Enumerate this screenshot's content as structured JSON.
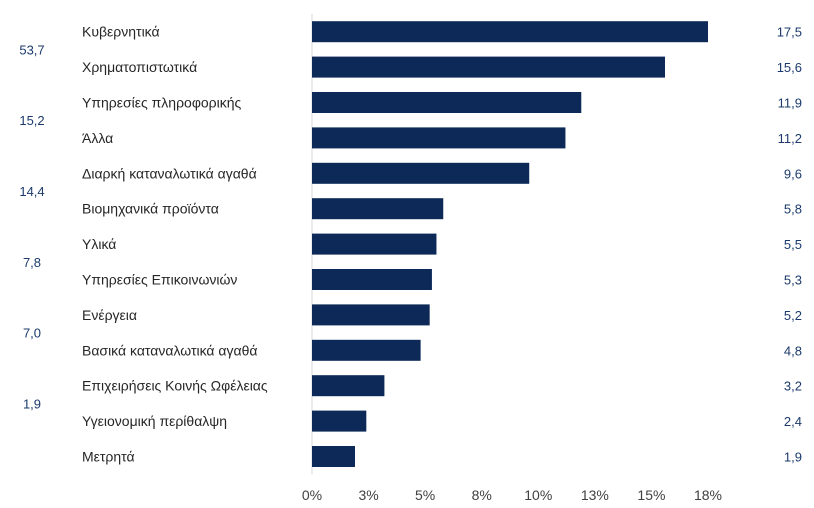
{
  "chart_data": {
    "type": "bar",
    "orientation": "horizontal",
    "categories": [
      "Κυβερνητικά",
      "Χρηματοπιστωτικά",
      "Υπηρεσίες πληροφορικής",
      "Άλλα",
      "Διαρκή καταναλωτικά αγαθά",
      "Βιομηχανικά προϊόντα",
      "Υλικά",
      "Υπηρεσίες Επικοινωνιών",
      "Ενέργεια",
      "Βασικά καταναλωτικά αγαθά",
      "Επιχειρήσεις Κοινής Ωφέλειας",
      "Υγειονομική περίθαλψη",
      "Μετρητά"
    ],
    "values": [
      17.5,
      15.6,
      11.9,
      11.2,
      9.6,
      5.8,
      5.5,
      5.3,
      5.2,
      4.8,
      3.2,
      2.4,
      1.9
    ],
    "value_labels": [
      "17,5",
      "15,6",
      "11,9",
      "11,2",
      "9,6",
      "5,8",
      "5,5",
      "5,3",
      "5,2",
      "4,8",
      "3,2",
      "2,4",
      "1,9"
    ],
    "group_labels": [
      {
        "text": "53,7",
        "row": 0.5
      },
      {
        "text": "15,2",
        "row": 2.5
      },
      {
        "text": "14,4",
        "row": 4.5
      },
      {
        "text": "7,8",
        "row": 6.5
      },
      {
        "text": "7,0",
        "row": 8.5
      },
      {
        "text": "1,9",
        "row": 10.5
      }
    ],
    "xticks": [
      0,
      2.5,
      5,
      7.5,
      10,
      12.5,
      15,
      17.5
    ],
    "xtick_labels": [
      "0%",
      "3%",
      "5%",
      "8%",
      "10%",
      "13%",
      "15%",
      "18%"
    ],
    "xlim": [
      0,
      20
    ],
    "bar_color": "#0c2957",
    "grid": false,
    "title": "",
    "xlabel": "",
    "ylabel": ""
  }
}
